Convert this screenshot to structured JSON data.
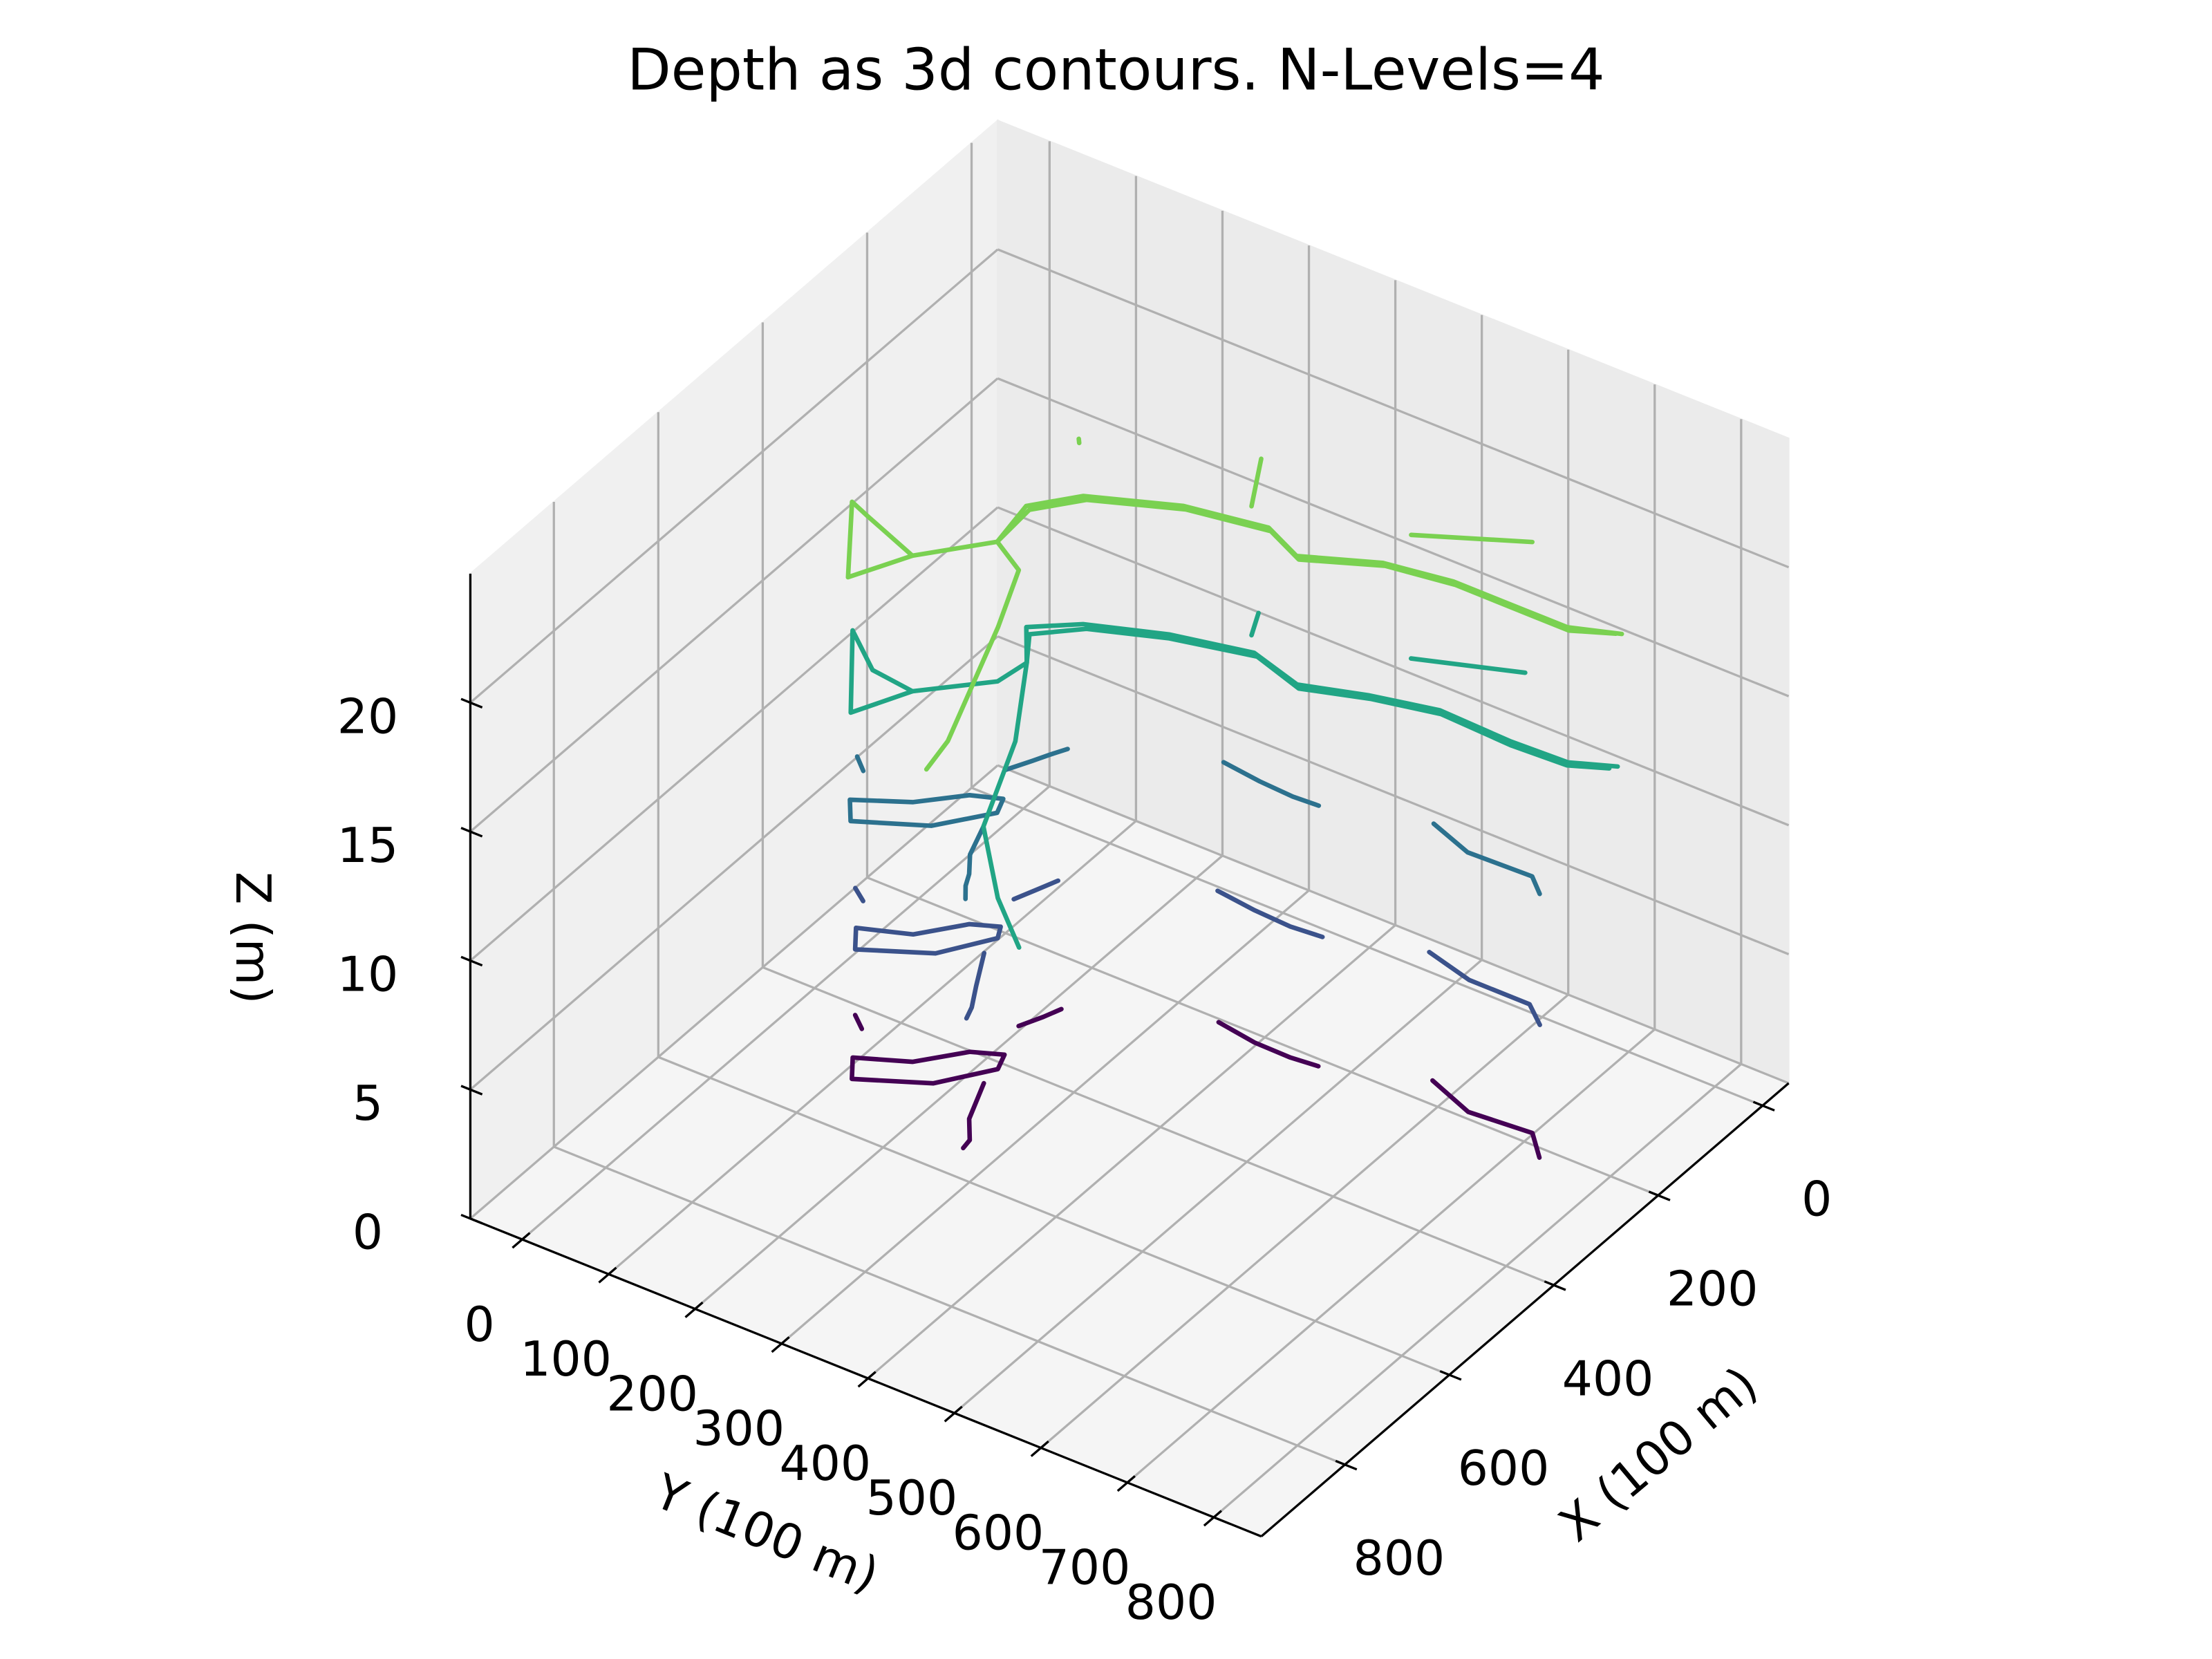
{
  "chart_data": {
    "type": "contour3d",
    "title": "Depth as 3d contours. N-Levels=4",
    "xlabel": "X (100 m)",
    "ylabel": "Y (100 m)",
    "zlabel": "Z (m)",
    "xlim": [
      -50,
      960
    ],
    "ylim": [
      -60,
      855
    ],
    "zlim": [
      0,
      25
    ],
    "xticks": [
      0,
      200,
      400,
      600,
      800
    ],
    "yticks": [
      0,
      100,
      200,
      300,
      400,
      500,
      600,
      700,
      800
    ],
    "zticks": [
      0,
      5,
      10,
      15,
      20
    ],
    "grid": true,
    "levels": [
      {
        "z": 5,
        "color": "#440154",
        "lines": [
          {
            "x": [
              678,
              711,
              668,
              607,
              581,
              598,
              648,
              678
            ],
            "y": [
              212,
              231,
              299,
              337,
              329,
              299,
              263,
              212
            ]
          },
          {
            "x": [
              637,
              700,
              732,
              748
            ],
            "y": [
              339,
              360,
              380,
              382
            ]
          },
          {
            "x": [
              529,
              500,
              477
            ],
            "y": [
              314,
              325,
              332
            ]
          },
          {
            "x": [
              401,
              410,
              411,
              407
            ],
            "y": [
              468,
              515,
              557,
              587
            ]
          },
          {
            "x": [
              359,
              385,
              378,
              411
            ],
            "y": [
              690,
              747,
              817,
              845
            ]
          },
          {
            "x": [
              612,
              629
            ],
            "y": [
              175,
              193
            ]
          }
        ]
      },
      {
        "z": 10,
        "color": "#3b528b",
        "lines": [
          {
            "x": [
              675,
              708,
              665,
              604,
              585,
              600,
              650,
              675
            ],
            "y": [
              214,
              233,
              300,
              335,
              327,
              300,
              265,
              214
            ]
          },
          {
            "x": [
              635,
              690,
              725,
              745
            ],
            "y": [
              338,
              362,
              378,
              384
            ]
          },
          {
            "x": [
              535,
              505,
              480
            ],
            "y": [
              312,
              322,
              330
            ]
          },
          {
            "x": [
              398,
              405,
              408,
              404
            ],
            "y": [
              465,
              512,
              555,
              590
            ]
          },
          {
            "x": [
              362,
              380,
              380,
              405
            ],
            "y": [
              688,
              745,
              815,
              842
            ]
          },
          {
            "x": [
              615,
              630
            ],
            "y": [
              177,
              195
            ]
          }
        ]
      },
      {
        "z": 15,
        "color": "#2c718e",
        "lines": [
          {
            "x": [
              680,
              712,
              670,
              610,
              585,
              600,
              645,
              680
            ],
            "y": [
              210,
              230,
              298,
              338,
              330,
              300,
              262,
              210
            ]
          },
          {
            "x": [
              640,
              690,
              720,
              740,
              760
            ],
            "y": [
              340,
              355,
              372,
              380,
              392
            ]
          },
          {
            "x": [
              540,
              510,
              490,
              470
            ],
            "y": [
              305,
              318,
              326,
              335
            ]
          },
          {
            "x": [
              395,
              402,
              405,
              403
            ],
            "y": [
              470,
              516,
              556,
              585
            ]
          },
          {
            "x": [
              360,
              383,
              380,
              402
            ],
            "y": [
              692,
              745,
              818,
              840
            ]
          },
          {
            "x": [
              610,
              628
            ],
            "y": [
              176,
              194
            ]
          }
        ]
      },
      {
        "z": 20,
        "color": "#21a585",
        "lines": [
          {
            "x": [
              743,
              617,
              665,
              673,
              743
            ],
            "y": [
              249,
              175,
              227,
              278,
              249
            ]
          },
          {
            "x": [
              673,
              606,
              560,
              506,
              467,
              430,
              406,
              428,
              401,
              380,
              384,
              381,
              357
            ],
            "y": [
              278,
              336,
              342,
              309,
              351,
              428,
              512,
              575,
              641,
              711,
              796,
              860,
              903
            ]
          },
          {
            "x": [
              560,
              515,
              472,
              436,
              410,
              433,
              405,
              385,
              390,
              386,
              365
            ],
            "y": [
              342,
              318,
              358,
              432,
              518,
              580,
              646,
              716,
              800,
              862,
              898
            ]
          },
          {
            "x": [
              560,
              686,
              835,
              935,
              997
            ],
            "y": [
              342,
              405,
              458,
              535,
              597
            ]
          },
          {
            "x": [
              343,
              381
            ],
            "y": [
              479,
              494
            ]
          },
          {
            "x": [
              319,
              271
            ],
            "y": [
              641,
              744
            ]
          }
        ]
      },
      {
        "z": 25,
        "color": "#7ad151",
        "lines": [
          {
            "x": [
              735,
              618,
              630,
              663,
              735
            ],
            "y": [
              241,
              175,
              200,
              272,
              241
            ]
          },
          {
            "x": [
              663,
              590,
              518,
              468,
              422,
              403,
              429,
              387,
              372,
              372,
              372,
              349
            ],
            "y": [
              272,
              326,
              316,
              352,
              440,
              527,
              575,
              649,
              722,
              805,
              854,
              903
            ]
          },
          {
            "x": [
              590,
              522,
              472,
              426,
              407,
              433,
              390,
              376,
              376,
              376,
              352
            ],
            "y": [
              326,
              322,
              358,
              445,
              532,
              580,
              654,
              727,
              810,
              858,
              898
            ]
          },
          {
            "x": [
              590,
              620,
              719,
              923,
              979
            ],
            "y": [
              326,
              369,
              405,
              470,
              479
            ]
          },
          {
            "x": [
              303,
              381
            ],
            "y": [
              458,
              494
            ]
          },
          {
            "x": [
              327,
              264
            ],
            "y": [
              646,
              748
            ]
          },
          {
            "x": [
              384,
              390
            ],
            "y": [
              296,
              300
            ]
          }
        ]
      }
    ]
  }
}
